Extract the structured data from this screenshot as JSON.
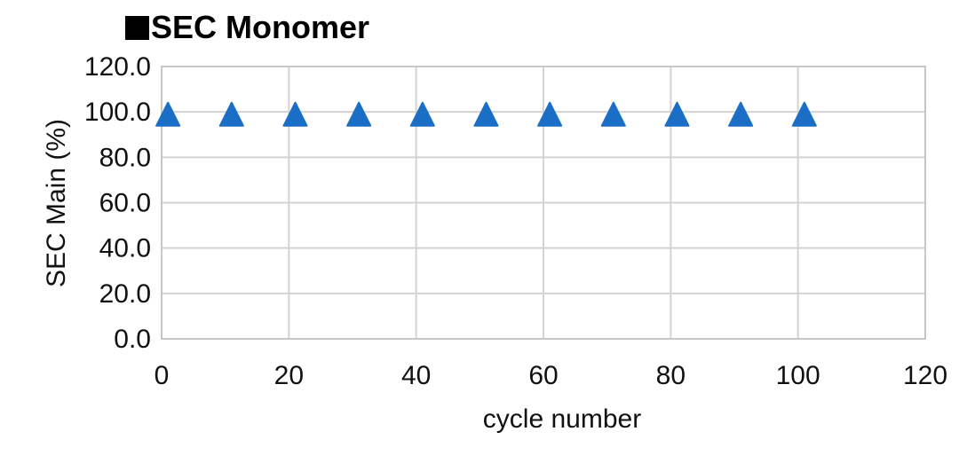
{
  "title": {
    "swatch": "black-square",
    "text": "SEC Monomer"
  },
  "colors": {
    "marker": "#1B6EC6",
    "grid": "#D5D3D1",
    "border": "#C9C7C5",
    "text": "#111111",
    "title": "#000000",
    "background": "#FFFFFF"
  },
  "chart_data": {
    "type": "scatter",
    "title": "SEC Monomer",
    "xlabel": "cycle number",
    "ylabel": "SEC Main (%)",
    "xlim": [
      0,
      120
    ],
    "ylim": [
      0,
      120
    ],
    "x_ticks": [
      0,
      20,
      40,
      60,
      80,
      100,
      120
    ],
    "y_ticks": [
      "0.0",
      "20.0",
      "40.0",
      "60.0",
      "80.0",
      "100.0",
      "120.0"
    ],
    "grid": true,
    "legend_position": "title-inline",
    "marker_shape": "triangle-up",
    "series": [
      {
        "name": "SEC Monomer",
        "x": [
          1,
          11,
          21,
          31,
          41,
          51,
          61,
          71,
          81,
          91,
          101
        ],
        "y": [
          99,
          99,
          99,
          99,
          99,
          99,
          99,
          99,
          99,
          99,
          99
        ]
      }
    ]
  }
}
